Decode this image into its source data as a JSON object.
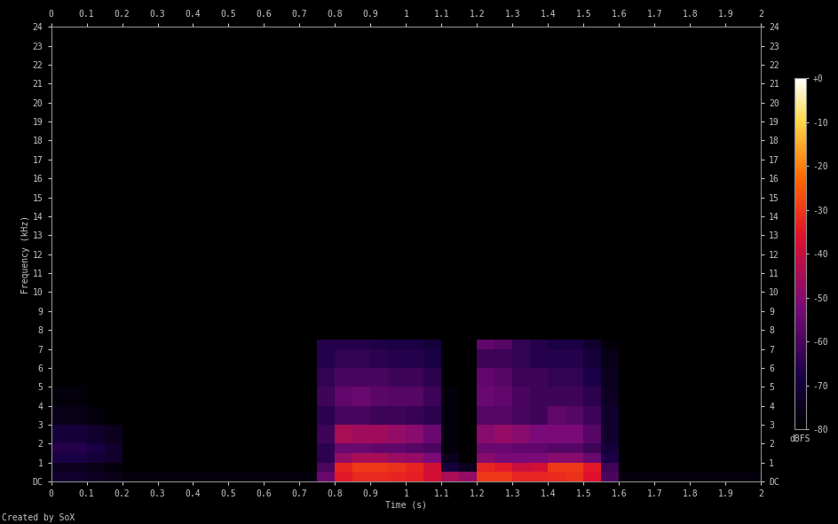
{
  "chart_data": {
    "type": "heatmap",
    "xlabel": "Time (s)",
    "ylabel": "Frequency (kHz)",
    "annotations": [
      "Created by SoX"
    ],
    "colorbar_label": "dBFS",
    "x": [
      0,
      0.05,
      0.1,
      0.15,
      0.2,
      0.25,
      0.3,
      0.35,
      0.4,
      0.45,
      0.5,
      0.55,
      0.6,
      0.65,
      0.7,
      0.75,
      0.8,
      0.85,
      0.9,
      0.95,
      1,
      1.05,
      1.1,
      1.15,
      1.2,
      1.25,
      1.3,
      1.35,
      1.4,
      1.45,
      1.5,
      1.55,
      1.6,
      1.65,
      1.7,
      1.75,
      1.8,
      1.85,
      1.9,
      1.95,
      2
    ],
    "y": [
      0,
      0.5,
      1,
      1.5,
      2,
      3,
      4,
      5,
      6,
      7,
      7.5,
      8,
      24
    ],
    "xlim": [
      0,
      2
    ],
    "ylim": [
      0,
      24
    ],
    "xticks": [
      0,
      0.1,
      0.2,
      0.3,
      0.4,
      0.5,
      0.6,
      0.7,
      0.8,
      0.9,
      1,
      1.1,
      1.2,
      1.3,
      1.4,
      1.5,
      1.6,
      1.7,
      1.8,
      1.9,
      2
    ],
    "yticks": [
      {
        "value": 0,
        "label": "DC"
      },
      1,
      2,
      3,
      4,
      5,
      6,
      7,
      8,
      9,
      10,
      11,
      12,
      13,
      14,
      15,
      16,
      17,
      18,
      19,
      20,
      21,
      22,
      23,
      24
    ],
    "colorbar_range": [
      -80,
      0
    ],
    "colorbar_ticks": [
      {
        "value": 0,
        "label": "+0"
      },
      -10,
      -20,
      -30,
      -40,
      -50,
      -60,
      -70,
      -80
    ],
    "cells": [
      [
        -72,
        -72,
        -74,
        -76,
        -78,
        -78,
        -78,
        -78,
        -78,
        -78,
        -78,
        -78,
        -78,
        -78,
        -78,
        -55,
        -35,
        -32,
        -32,
        -33,
        -34,
        -38,
        -45,
        -48,
        -30,
        -30,
        -33,
        -33,
        -32,
        -31,
        -36,
        -60,
        -78,
        -78,
        -78,
        -78,
        -78,
        -78,
        -78,
        -78
      ],
      [
        -75,
        -75,
        -76,
        -78,
        -80,
        -80,
        -80,
        -80,
        -80,
        -80,
        -80,
        -80,
        -80,
        -80,
        -80,
        -60,
        -33,
        -30,
        -30,
        -31,
        -33,
        -38,
        -70,
        -75,
        -33,
        -35,
        -40,
        -38,
        -30,
        -30,
        -35,
        -62,
        -80,
        -80,
        -80,
        -80,
        -80,
        -80,
        -80,
        -80
      ],
      [
        -68,
        -68,
        -70,
        -72,
        -80,
        -80,
        -80,
        -80,
        -80,
        -80,
        -80,
        -80,
        -80,
        -80,
        -80,
        -65,
        -48,
        -45,
        -45,
        -47,
        -48,
        -52,
        -75,
        -80,
        -50,
        -52,
        -52,
        -52,
        -50,
        -50,
        -55,
        -68,
        -80,
        -80,
        -80,
        -80,
        -80,
        -80,
        -80,
        -80
      ],
      [
        -66,
        -66,
        -68,
        -72,
        -80,
        -80,
        -80,
        -80,
        -80,
        -80,
        -80,
        -80,
        -80,
        -80,
        -80,
        -65,
        -55,
        -55,
        -56,
        -56,
        -58,
        -60,
        -78,
        -80,
        -55,
        -55,
        -56,
        -56,
        -58,
        -58,
        -62,
        -70,
        -80,
        -80,
        -80,
        -80,
        -80,
        -80,
        -80,
        -80
      ],
      [
        -70,
        -70,
        -72,
        -75,
        -80,
        -80,
        -80,
        -80,
        -80,
        -80,
        -80,
        -80,
        -80,
        -80,
        -80,
        -62,
        -45,
        -46,
        -46,
        -48,
        -50,
        -55,
        -78,
        -80,
        -50,
        -48,
        -50,
        -52,
        -52,
        -52,
        -58,
        -72,
        -80,
        -80,
        -80,
        -80,
        -80,
        -80,
        -80,
        -80
      ],
      [
        -76,
        -76,
        -78,
        -80,
        -80,
        -80,
        -80,
        -80,
        -80,
        -80,
        -80,
        -80,
        -80,
        -80,
        -80,
        -65,
        -60,
        -60,
        -62,
        -62,
        -63,
        -65,
        -78,
        -80,
        -58,
        -58,
        -60,
        -62,
        -56,
        -58,
        -62,
        -72,
        -80,
        -80,
        -80,
        -80,
        -80,
        -80,
        -80,
        -80
      ],
      [
        -78,
        -78,
        -80,
        -80,
        -80,
        -80,
        -80,
        -80,
        -80,
        -80,
        -80,
        -80,
        -80,
        -80,
        -80,
        -62,
        -56,
        -55,
        -57,
        -58,
        -58,
        -62,
        -78,
        -80,
        -55,
        -56,
        -60,
        -62,
        -62,
        -62,
        -65,
        -74,
        -80,
        -80,
        -80,
        -80,
        -80,
        -80,
        -80,
        -80
      ],
      [
        -80,
        -80,
        -80,
        -80,
        -80,
        -80,
        -80,
        -80,
        -80,
        -80,
        -80,
        -80,
        -80,
        -80,
        -80,
        -64,
        -60,
        -60,
        -60,
        -62,
        -62,
        -65,
        -80,
        -80,
        -56,
        -58,
        -62,
        -62,
        -64,
        -64,
        -68,
        -75,
        -80,
        -80,
        -80,
        -80,
        -80,
        -80,
        -80,
        -80
      ],
      [
        -80,
        -80,
        -80,
        -80,
        -80,
        -80,
        -80,
        -80,
        -80,
        -80,
        -80,
        -80,
        -80,
        -80,
        -80,
        -66,
        -64,
        -64,
        -65,
        -66,
        -66,
        -68,
        -80,
        -80,
        -62,
        -62,
        -64,
        -66,
        -66,
        -66,
        -70,
        -76,
        -80,
        -80,
        -80,
        -80,
        -80,
        -80,
        -80,
        -80
      ],
      [
        -80,
        -80,
        -80,
        -80,
        -80,
        -80,
        -80,
        -80,
        -80,
        -80,
        -80,
        -80,
        -80,
        -80,
        -80,
        -66,
        -66,
        -66,
        -67,
        -68,
        -68,
        -70,
        -80,
        -80,
        -56,
        -58,
        -64,
        -66,
        -68,
        -68,
        -72,
        -78,
        -80,
        -80,
        -80,
        -80,
        -80,
        -80,
        -80,
        -80
      ],
      [
        -80,
        -80,
        -80,
        -80,
        -80,
        -80,
        -80,
        -80,
        -80,
        -80,
        -80,
        -80,
        -80,
        -80,
        -80,
        -80,
        -80,
        -80,
        -80,
        -80,
        -80,
        -80,
        -80,
        -80,
        -80,
        -80,
        -80,
        -80,
        -80,
        -80,
        -80,
        -80,
        -80,
        -80,
        -80,
        -80,
        -80,
        -80,
        -80,
        -80
      ],
      [
        -80,
        -80,
        -80,
        -80,
        -80,
        -80,
        -80,
        -80,
        -80,
        -80,
        -80,
        -80,
        -80,
        -80,
        -80,
        -80,
        -80,
        -80,
        -80,
        -80,
        -80,
        -80,
        -80,
        -80,
        -80,
        -80,
        -80,
        -80,
        -80,
        -80,
        -80,
        -80,
        -80,
        -80,
        -80,
        -80,
        -80,
        -80,
        -80,
        -80
      ]
    ]
  }
}
